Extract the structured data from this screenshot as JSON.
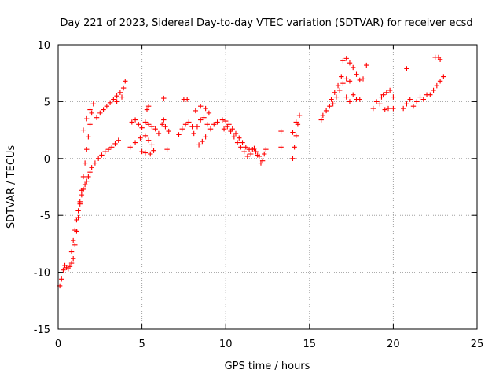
{
  "chart_data": {
    "type": "scatter",
    "title": "Day 221 of 2023, Sidereal Day-to-day VTEC variation (SDTVAR) for receiver ecsd",
    "xlabel": "GPS time / hours",
    "ylabel": "SDTVAR / TECUs",
    "xlim": [
      0,
      25
    ],
    "ylim": [
      -15,
      10
    ],
    "grid": true,
    "x_ticks": [
      0,
      5,
      10,
      15,
      20,
      25
    ],
    "y_ticks": [
      -15,
      -10,
      -5,
      0,
      5,
      10
    ],
    "x_tick_labels": [
      "0",
      "5",
      "10",
      "15",
      "20",
      "25"
    ],
    "y_tick_labels": [
      "-15",
      "-10",
      "-5",
      "0",
      "5",
      "10"
    ],
    "marker": "plus",
    "color": "#ff0000",
    "series": [
      {
        "name": "SDTVAR",
        "points": [
          [
            0.1,
            -11.2
          ],
          [
            0.2,
            -10.6
          ],
          [
            0.3,
            -9.8
          ],
          [
            0.4,
            -9.4
          ],
          [
            0.5,
            -9.6
          ],
          [
            0.6,
            -9.7
          ],
          [
            0.7,
            -9.5
          ],
          [
            0.8,
            -9.2
          ],
          [
            0.9,
            -8.8
          ],
          [
            1.0,
            -7.6
          ],
          [
            1.1,
            -6.4
          ],
          [
            1.2,
            -5.2
          ],
          [
            1.3,
            -4.0
          ],
          [
            1.4,
            -2.8
          ],
          [
            1.5,
            -1.6
          ],
          [
            1.6,
            -0.4
          ],
          [
            1.7,
            0.8
          ],
          [
            1.8,
            1.9
          ],
          [
            1.9,
            3.0
          ],
          [
            2.0,
            4.0
          ],
          [
            2.1,
            4.8
          ],
          [
            1.5,
            2.5
          ],
          [
            1.7,
            3.5
          ],
          [
            1.9,
            4.3
          ],
          [
            0.8,
            -8.2
          ],
          [
            0.9,
            -7.2
          ],
          [
            1.0,
            -6.3
          ],
          [
            1.1,
            -5.4
          ],
          [
            1.2,
            -4.6
          ],
          [
            1.3,
            -3.8
          ],
          [
            1.4,
            -3.2
          ],
          [
            1.5,
            -2.7
          ],
          [
            1.6,
            -2.3
          ],
          [
            1.7,
            -2.0
          ],
          [
            1.8,
            -1.6
          ],
          [
            1.9,
            -1.2
          ],
          [
            2.0,
            -0.8
          ],
          [
            2.2,
            -0.4
          ],
          [
            2.4,
            0.0
          ],
          [
            2.6,
            0.3
          ],
          [
            2.8,
            0.6
          ],
          [
            3.0,
            0.8
          ],
          [
            3.2,
            1.0
          ],
          [
            3.4,
            1.3
          ],
          [
            3.6,
            1.6
          ],
          [
            2.3,
            3.6
          ],
          [
            2.5,
            4.0
          ],
          [
            2.7,
            4.3
          ],
          [
            2.9,
            4.6
          ],
          [
            3.1,
            4.9
          ],
          [
            3.3,
            5.2
          ],
          [
            3.5,
            5.5
          ],
          [
            3.7,
            5.8
          ],
          [
            3.9,
            6.2
          ],
          [
            4.0,
            6.8
          ],
          [
            3.5,
            5.0
          ],
          [
            3.8,
            5.4
          ],
          [
            4.3,
            1.0
          ],
          [
            4.6,
            1.4
          ],
          [
            4.9,
            1.8
          ],
          [
            5.2,
            2.0
          ],
          [
            5.4,
            1.6
          ],
          [
            5.6,
            1.2
          ],
          [
            4.4,
            3.2
          ],
          [
            4.6,
            3.4
          ],
          [
            4.8,
            3.0
          ],
          [
            5.0,
            2.7
          ],
          [
            5.2,
            3.2
          ],
          [
            5.4,
            3.0
          ],
          [
            5.6,
            2.8
          ],
          [
            5.8,
            2.6
          ],
          [
            5.0,
            0.6
          ],
          [
            5.2,
            0.5
          ],
          [
            5.5,
            0.4
          ],
          [
            5.7,
            0.7
          ],
          [
            5.3,
            4.3
          ],
          [
            5.4,
            4.6
          ],
          [
            6.0,
            2.2
          ],
          [
            6.2,
            3.0
          ],
          [
            6.3,
            3.4
          ],
          [
            6.4,
            2.8
          ],
          [
            6.5,
            0.8
          ],
          [
            6.6,
            2.4
          ],
          [
            6.3,
            5.3
          ],
          [
            7.2,
            2.1
          ],
          [
            7.4,
            2.6
          ],
          [
            7.6,
            3.0
          ],
          [
            7.8,
            3.2
          ],
          [
            8.0,
            2.8
          ],
          [
            7.5,
            5.2
          ],
          [
            7.7,
            5.2
          ],
          [
            8.1,
            2.2
          ],
          [
            8.3,
            2.8
          ],
          [
            8.5,
            3.4
          ],
          [
            8.7,
            3.6
          ],
          [
            8.9,
            3.0
          ],
          [
            9.1,
            2.6
          ],
          [
            8.2,
            4.2
          ],
          [
            8.5,
            4.6
          ],
          [
            8.8,
            4.4
          ],
          [
            9.0,
            4.0
          ],
          [
            8.4,
            1.2
          ],
          [
            8.6,
            1.5
          ],
          [
            8.8,
            1.9
          ],
          [
            9.3,
            3.0
          ],
          [
            9.5,
            3.2
          ],
          [
            9.8,
            3.4
          ],
          [
            10.0,
            3.3
          ],
          [
            10.2,
            3.0
          ],
          [
            10.4,
            2.6
          ],
          [
            10.6,
            2.2
          ],
          [
            10.8,
            1.8
          ],
          [
            11.0,
            1.4
          ],
          [
            11.2,
            1.0
          ],
          [
            11.4,
            0.8
          ],
          [
            11.6,
            0.8
          ],
          [
            11.8,
            0.6
          ],
          [
            12.0,
            0.2
          ],
          [
            12.2,
            -0.2
          ],
          [
            12.3,
            0.4
          ],
          [
            12.4,
            0.8
          ],
          [
            9.9,
            2.6
          ],
          [
            10.1,
            2.8
          ],
          [
            10.3,
            2.4
          ],
          [
            10.5,
            1.9
          ],
          [
            10.7,
            1.4
          ],
          [
            10.9,
            1.0
          ],
          [
            11.1,
            0.6
          ],
          [
            11.3,
            0.2
          ],
          [
            11.5,
            0.4
          ],
          [
            11.7,
            0.9
          ],
          [
            11.9,
            0.3
          ],
          [
            12.1,
            -0.4
          ],
          [
            13.3,
            1.0
          ],
          [
            13.3,
            2.4
          ],
          [
            14.0,
            0.0
          ],
          [
            14.1,
            1.0
          ],
          [
            14.2,
            2.0
          ],
          [
            14.3,
            3.0
          ],
          [
            14.4,
            3.8
          ],
          [
            14.0,
            2.3
          ],
          [
            14.2,
            3.2
          ],
          [
            15.7,
            3.4
          ],
          [
            15.8,
            3.8
          ],
          [
            16.0,
            4.2
          ],
          [
            16.2,
            4.6
          ],
          [
            16.4,
            4.8
          ],
          [
            16.6,
            5.4
          ],
          [
            16.8,
            6.0
          ],
          [
            17.0,
            6.6
          ],
          [
            17.2,
            7.0
          ],
          [
            17.4,
            6.8
          ],
          [
            16.3,
            5.2
          ],
          [
            16.5,
            5.8
          ],
          [
            16.7,
            6.4
          ],
          [
            16.9,
            7.2
          ],
          [
            17.0,
            8.6
          ],
          [
            17.2,
            8.8
          ],
          [
            17.4,
            8.4
          ],
          [
            17.6,
            8.0
          ],
          [
            17.2,
            5.4
          ],
          [
            17.4,
            5.0
          ],
          [
            17.6,
            5.6
          ],
          [
            17.8,
            5.2
          ],
          [
            17.8,
            7.4
          ],
          [
            18.0,
            6.9
          ],
          [
            18.0,
            5.2
          ],
          [
            18.2,
            7.0
          ],
          [
            18.4,
            8.2
          ],
          [
            18.8,
            4.4
          ],
          [
            19.0,
            5.0
          ],
          [
            19.2,
            4.8
          ],
          [
            19.4,
            5.6
          ],
          [
            19.6,
            5.8
          ],
          [
            19.8,
            6.0
          ],
          [
            19.5,
            4.3
          ],
          [
            19.7,
            4.4
          ],
          [
            20.0,
            4.4
          ],
          [
            20.0,
            5.4
          ],
          [
            19.3,
            5.4
          ],
          [
            20.6,
            4.4
          ],
          [
            20.8,
            4.8
          ],
          [
            21.0,
            5.2
          ],
          [
            21.2,
            4.6
          ],
          [
            21.4,
            5.0
          ],
          [
            21.6,
            5.4
          ],
          [
            21.8,
            5.2
          ],
          [
            22.0,
            5.6
          ],
          [
            22.2,
            5.6
          ],
          [
            22.4,
            6.0
          ],
          [
            22.6,
            6.4
          ],
          [
            22.8,
            6.8
          ],
          [
            23.0,
            7.2
          ],
          [
            20.8,
            7.9
          ],
          [
            22.5,
            8.9
          ],
          [
            22.7,
            8.9
          ],
          [
            22.8,
            8.7
          ]
        ]
      }
    ]
  }
}
